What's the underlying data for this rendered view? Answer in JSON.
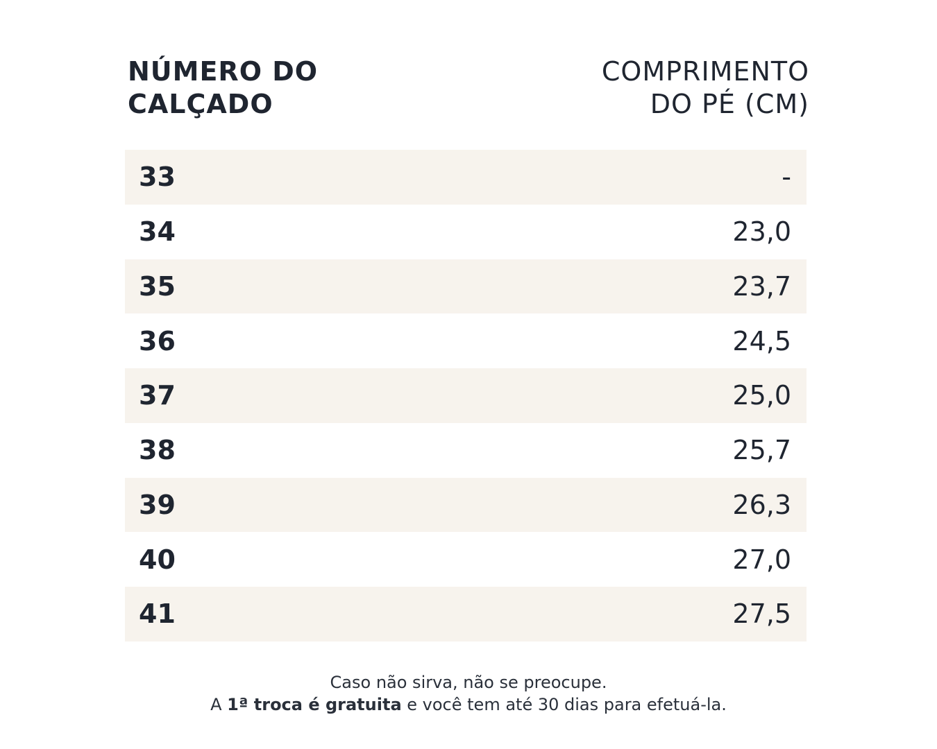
{
  "header": {
    "size_label_line1": "NÚMERO DO",
    "size_label_line2": "CALÇADO",
    "length_label_line1": "COMPRIMENTO",
    "length_label_line2": "DO PÉ (CM)"
  },
  "rows": [
    {
      "size": "33",
      "length": "-"
    },
    {
      "size": "34",
      "length": "23,0"
    },
    {
      "size": "35",
      "length": "23,7"
    },
    {
      "size": "36",
      "length": "24,5"
    },
    {
      "size": "37",
      "length": "25,0"
    },
    {
      "size": "38",
      "length": "25,7"
    },
    {
      "size": "39",
      "length": "26,3"
    },
    {
      "size": "40",
      "length": "27,0"
    },
    {
      "size": "41",
      "length": "27,5"
    }
  ],
  "footer": {
    "line1": "Caso não sirva, não se preocupe.",
    "line2_prefix": "A ",
    "line2_bold": "1ª troca é gratuita",
    "line2_suffix": " e você tem até 30 dias para efetuá-la."
  },
  "colors": {
    "text": "#1f2530",
    "row_shade": "#f7f3ed",
    "background": "#ffffff"
  }
}
